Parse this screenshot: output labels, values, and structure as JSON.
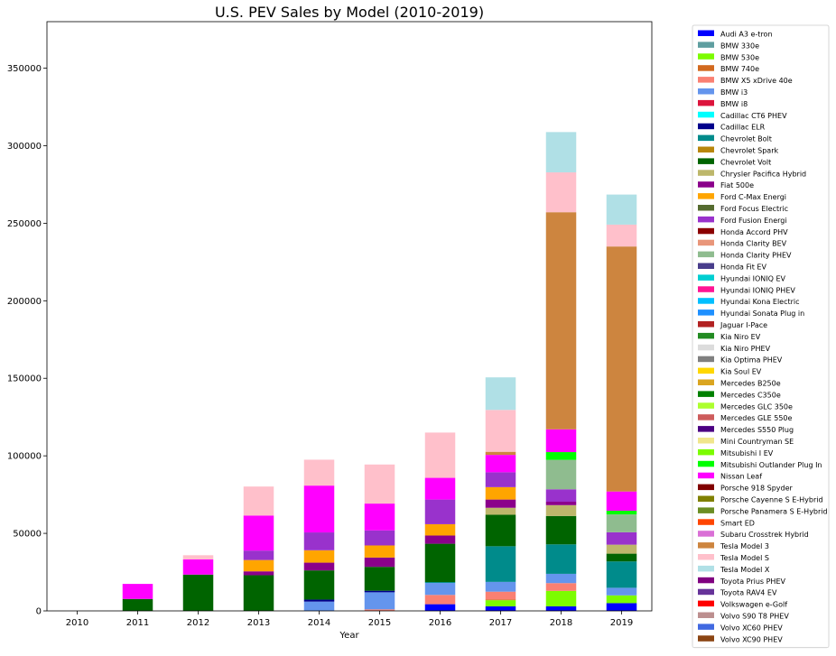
{
  "chart_data": {
    "type": "bar",
    "stacked": true,
    "title": "U.S. PEV Sales by Model (2010-2019)",
    "xlabel": "Year",
    "ylabel": "",
    "ylim": [
      0,
      380000
    ],
    "yticks": [
      0,
      50000,
      100000,
      150000,
      200000,
      250000,
      300000,
      350000
    ],
    "categories": [
      "2010",
      "2011",
      "2012",
      "2013",
      "2014",
      "2015",
      "2016",
      "2017",
      "2018",
      "2019"
    ],
    "legend_position": "outside-right",
    "series": [
      {
        "name": "Audi A3 e-tron",
        "color": "#0000ff",
        "values": [
          0,
          0,
          0,
          0,
          0,
          0,
          4300,
          2900,
          2900,
          5000
        ]
      },
      {
        "name": "BMW 330e",
        "color": "#5f9ea0",
        "values": [
          0,
          0,
          0,
          0,
          0,
          0,
          0,
          0,
          0,
          0
        ]
      },
      {
        "name": "BMW 530e",
        "color": "#7cfc00",
        "values": [
          0,
          0,
          0,
          0,
          0,
          0,
          0,
          4000,
          10000,
          5000
        ]
      },
      {
        "name": "BMW 740e",
        "color": "#d2691e",
        "values": [
          0,
          0,
          0,
          0,
          0,
          0,
          0,
          500,
          0,
          0
        ]
      },
      {
        "name": "BMW X5 xDrive 40e",
        "color": "#fa8072",
        "values": [
          0,
          0,
          0,
          0,
          0,
          1000,
          6000,
          5000,
          5000,
          0
        ]
      },
      {
        "name": "BMW i3",
        "color": "#6495ed",
        "values": [
          0,
          0,
          0,
          0,
          6000,
          11000,
          7700,
          6300,
          6000,
          4900
        ]
      },
      {
        "name": "BMW i8",
        "color": "#dc143c",
        "values": [
          0,
          0,
          0,
          0,
          0,
          0,
          0,
          0,
          0,
          0
        ]
      },
      {
        "name": "Cadillac CT6 PHEV",
        "color": "#00ffff",
        "values": [
          0,
          0,
          0,
          0,
          0,
          0,
          0,
          0,
          0,
          0
        ]
      },
      {
        "name": "Cadillac ELR",
        "color": "#00008b",
        "values": [
          0,
          0,
          0,
          0,
          1300,
          1000,
          0,
          0,
          0,
          0
        ]
      },
      {
        "name": "Chevrolet Bolt",
        "color": "#008b8b",
        "values": [
          0,
          0,
          0,
          0,
          0,
          0,
          600,
          23000,
          19000,
          17000
        ]
      },
      {
        "name": "Chevrolet Spark",
        "color": "#b8860b",
        "values": [
          0,
          0,
          0,
          0,
          0,
          0,
          0,
          0,
          0,
          0
        ]
      },
      {
        "name": "Chevrolet Volt",
        "color": "#006400",
        "values": [
          0,
          7700,
          23400,
          23000,
          18800,
          15400,
          24700,
          20300,
          18300,
          5000
        ]
      },
      {
        "name": "Chrysler Pacifica Hybrid",
        "color": "#bdb76b",
        "values": [
          0,
          0,
          0,
          0,
          0,
          0,
          0,
          4500,
          7000,
          5800
        ]
      },
      {
        "name": "Fiat 500e",
        "color": "#8b008b",
        "values": [
          0,
          0,
          0,
          2500,
          5000,
          6000,
          5300,
          5300,
          2200,
          0
        ]
      },
      {
        "name": "Ford C-Max Energi",
        "color": "#ffa500",
        "values": [
          0,
          0,
          0,
          7300,
          8000,
          7800,
          7300,
          8000,
          0,
          0
        ]
      },
      {
        "name": "Ford Focus Electric",
        "color": "#556b2f",
        "values": [
          0,
          0,
          0,
          0,
          0,
          0,
          0,
          0,
          0,
          0
        ]
      },
      {
        "name": "Ford Fusion Energi",
        "color": "#9932cc",
        "values": [
          0,
          0,
          0,
          6100,
          11500,
          9700,
          15900,
          9600,
          8000,
          8000
        ]
      },
      {
        "name": "Honda Accord PHV",
        "color": "#8b0000",
        "values": [
          0,
          0,
          0,
          0,
          0,
          0,
          0,
          0,
          0,
          0
        ]
      },
      {
        "name": "Honda Clarity BEV",
        "color": "#e9967a",
        "values": [
          0,
          0,
          0,
          0,
          0,
          0,
          0,
          0,
          0,
          0
        ]
      },
      {
        "name": "Honda Clarity PHEV",
        "color": "#8fbc8f",
        "values": [
          0,
          0,
          0,
          0,
          0,
          0,
          0,
          0,
          19000,
          11500
        ]
      },
      {
        "name": "Honda Fit EV",
        "color": "#483d8b",
        "values": [
          0,
          0,
          0,
          0,
          0,
          0,
          0,
          0,
          0,
          0
        ]
      },
      {
        "name": "Hyundai IONIQ EV",
        "color": "#00ced1",
        "values": [
          0,
          0,
          0,
          0,
          0,
          0,
          0,
          0,
          0,
          0
        ]
      },
      {
        "name": "Hyundai IONIQ PHEV",
        "color": "#ff1493",
        "values": [
          0,
          0,
          0,
          0,
          0,
          0,
          0,
          0,
          0,
          0
        ]
      },
      {
        "name": "Hyundai Kona Electric",
        "color": "#00bfff",
        "values": [
          0,
          0,
          0,
          0,
          0,
          0,
          0,
          0,
          0,
          0
        ]
      },
      {
        "name": "Hyundai Sonata Plug in",
        "color": "#1e90ff",
        "values": [
          0,
          0,
          0,
          0,
          0,
          0,
          0,
          0,
          0,
          0
        ]
      },
      {
        "name": "Jaguar I-Pace",
        "color": "#b22222",
        "values": [
          0,
          0,
          0,
          0,
          0,
          0,
          0,
          0,
          0,
          0
        ]
      },
      {
        "name": "Kia Niro EV",
        "color": "#228b22",
        "values": [
          0,
          0,
          0,
          0,
          0,
          0,
          0,
          0,
          0,
          0
        ]
      },
      {
        "name": "Kia Niro PHEV",
        "color": "#dcdcdc",
        "values": [
          0,
          0,
          0,
          0,
          0,
          0,
          0,
          0,
          0,
          0
        ]
      },
      {
        "name": "Kia Optima PHEV",
        "color": "#808080",
        "values": [
          0,
          0,
          0,
          0,
          0,
          0,
          0,
          0,
          0,
          0
        ]
      },
      {
        "name": "Kia Soul EV",
        "color": "#ffd700",
        "values": [
          0,
          0,
          0,
          0,
          0,
          0,
          0,
          0,
          0,
          0
        ]
      },
      {
        "name": "Mercedes B250e",
        "color": "#daa520",
        "values": [
          0,
          0,
          0,
          0,
          0,
          0,
          0,
          0,
          0,
          0
        ]
      },
      {
        "name": "Mercedes C350e",
        "color": "#008000",
        "values": [
          0,
          0,
          0,
          0,
          0,
          0,
          0,
          0,
          0,
          0
        ]
      },
      {
        "name": "Mercedes GLC 350e",
        "color": "#adff2f",
        "values": [
          0,
          0,
          0,
          0,
          0,
          0,
          0,
          0,
          0,
          0
        ]
      },
      {
        "name": "Mercedes GLE 550e",
        "color": "#cd5c5c",
        "values": [
          0,
          0,
          0,
          0,
          0,
          0,
          0,
          0,
          0,
          0
        ]
      },
      {
        "name": "Mercedes S550 Plug",
        "color": "#4b0082",
        "values": [
          0,
          0,
          0,
          0,
          0,
          0,
          0,
          0,
          0,
          0
        ]
      },
      {
        "name": "Mini Countryman SE",
        "color": "#f0e68c",
        "values": [
          0,
          0,
          0,
          0,
          0,
          0,
          0,
          0,
          0,
          0
        ]
      },
      {
        "name": "Mitsubishi I EV",
        "color": "#7cfc00",
        "values": [
          0,
          0,
          0,
          0,
          0,
          0,
          0,
          0,
          0,
          0
        ]
      },
      {
        "name": "Mitsubishi Outlander Plug In",
        "color": "#00ff00",
        "values": [
          0,
          0,
          0,
          0,
          0,
          0,
          0,
          0,
          5000,
          2400
        ]
      },
      {
        "name": "Nissan Leaf",
        "color": "#ff00ff",
        "values": [
          0,
          9700,
          9800,
          22600,
          30200,
          17300,
          14000,
          11200,
          14700,
          12400
        ]
      },
      {
        "name": "Porsche 918 Spyder",
        "color": "#800000",
        "values": [
          0,
          0,
          0,
          0,
          0,
          0,
          0,
          0,
          0,
          0
        ]
      },
      {
        "name": "Porsche Cayenne S E-Hybrid",
        "color": "#808000",
        "values": [
          0,
          0,
          0,
          0,
          0,
          0,
          0,
          0,
          0,
          0
        ]
      },
      {
        "name": "Porsche Panamera S E-Hybrid",
        "color": "#6b8e23",
        "values": [
          0,
          0,
          0,
          0,
          0,
          0,
          0,
          0,
          0,
          0
        ]
      },
      {
        "name": "Smart ED",
        "color": "#ff4500",
        "values": [
          0,
          0,
          0,
          0,
          0,
          0,
          0,
          0,
          0,
          0
        ]
      },
      {
        "name": "Subaru Crosstrek Hybrid",
        "color": "#da70d6",
        "values": [
          0,
          0,
          0,
          0,
          0,
          0,
          0,
          0,
          0,
          0
        ]
      },
      {
        "name": "Tesla Model 3",
        "color": "#cd853f",
        "values": [
          0,
          0,
          0,
          0,
          0,
          0,
          0,
          2000,
          140000,
          158000
        ]
      },
      {
        "name": "Tesla Model S",
        "color": "#ffc0cb",
        "values": [
          0,
          0,
          2700,
          18700,
          16700,
          25200,
          29200,
          27000,
          25700,
          14100
        ]
      },
      {
        "name": "Tesla Model X",
        "color": "#b0e0e6",
        "values": [
          0,
          0,
          0,
          0,
          0,
          0,
          0,
          21000,
          26000,
          19400
        ]
      },
      {
        "name": "Toyota Prius PHEV",
        "color": "#800080",
        "values": [
          0,
          0,
          0,
          0,
          0,
          0,
          0,
          0,
          0,
          0
        ]
      },
      {
        "name": "Toyota RAV4 EV",
        "color": "#663399",
        "values": [
          0,
          0,
          0,
          0,
          0,
          0,
          0,
          0,
          0,
          0
        ]
      },
      {
        "name": "Volkswagen e-Golf",
        "color": "#ff0000",
        "values": [
          0,
          0,
          0,
          0,
          0,
          0,
          0,
          0,
          0,
          0
        ]
      },
      {
        "name": "Volvo S90 T8 PHEV",
        "color": "#bc8f8f",
        "values": [
          0,
          0,
          0,
          0,
          0,
          0,
          0,
          0,
          0,
          0
        ]
      },
      {
        "name": "Volvo XC60 PHEV",
        "color": "#4169e1",
        "values": [
          0,
          0,
          0,
          0,
          0,
          0,
          0,
          0,
          0,
          0
        ]
      },
      {
        "name": "Volvo XC90 PHEV",
        "color": "#8b4513",
        "values": [
          0,
          0,
          0,
          0,
          0,
          0,
          0,
          0,
          0,
          0
        ]
      }
    ]
  }
}
